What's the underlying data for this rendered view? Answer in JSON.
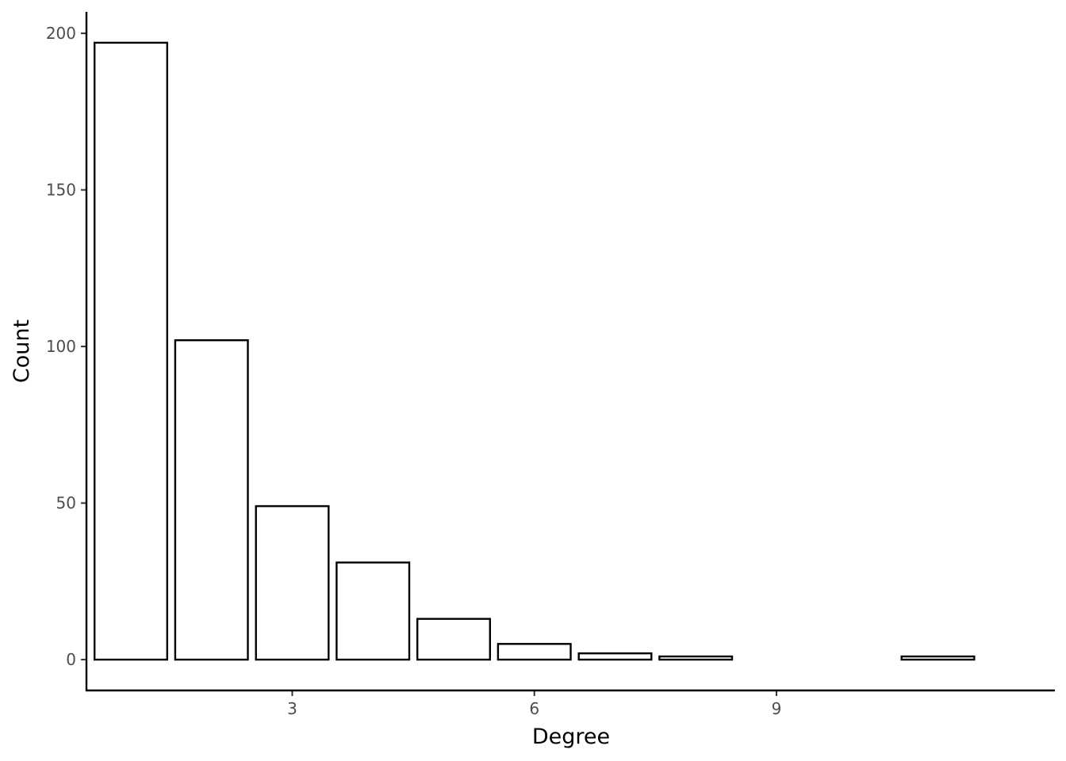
{
  "chart_data": {
    "type": "bar",
    "title": "",
    "xlabel": "Degree",
    "ylabel": "Count",
    "x": [
      1,
      2,
      3,
      4,
      5,
      6,
      7,
      8,
      11
    ],
    "values": [
      197,
      102,
      49,
      31,
      13,
      5,
      2,
      1,
      1
    ],
    "xlim": [
      0.45,
      12.45
    ],
    "ylim": [
      -9.85,
      206.85
    ],
    "xticks": [
      3,
      6,
      9
    ],
    "yticks": [
      0,
      50,
      100,
      150,
      200
    ],
    "grid": false,
    "legend": "none",
    "bar_fill": "#ffffff",
    "bar_stroke": "#000000"
  }
}
